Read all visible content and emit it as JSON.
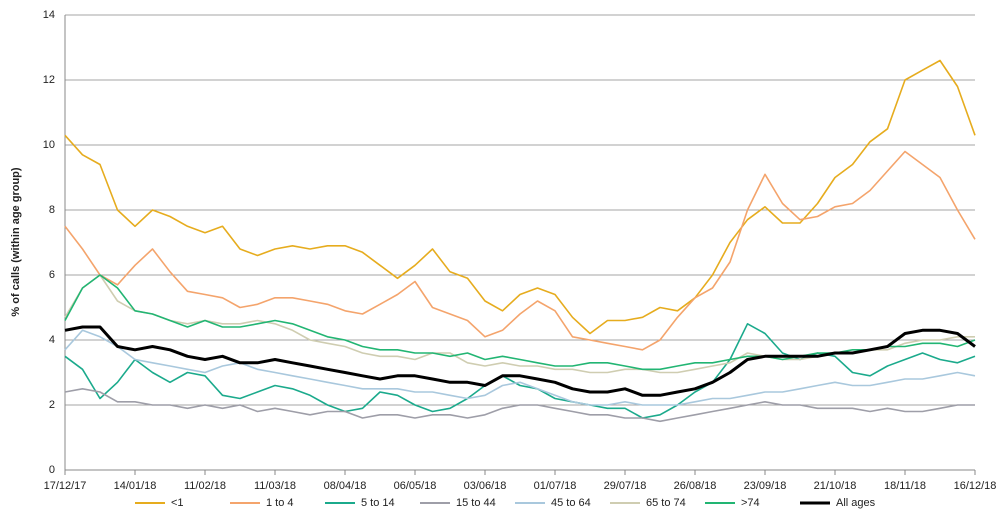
{
  "chart_data": {
    "type": "line",
    "y_label": "% of calls (within age group)",
    "x": [
      "17/12/17",
      "24/12/17",
      "31/12/17",
      "07/01/18",
      "14/01/18",
      "21/01/18",
      "28/01/18",
      "04/02/18",
      "11/02/18",
      "18/02/18",
      "25/02/18",
      "04/03/18",
      "11/03/18",
      "18/03/18",
      "25/03/18",
      "01/04/18",
      "08/04/18",
      "15/04/18",
      "22/04/18",
      "29/04/18",
      "06/05/18",
      "13/05/18",
      "20/05/18",
      "27/05/18",
      "03/06/18",
      "10/06/18",
      "17/06/18",
      "24/06/18",
      "01/07/18",
      "08/07/18",
      "15/07/18",
      "22/07/18",
      "29/07/18",
      "05/08/18",
      "12/08/18",
      "19/08/18",
      "26/08/18",
      "02/09/18",
      "09/09/18",
      "16/09/18",
      "23/09/18",
      "30/09/18",
      "07/10/18",
      "14/10/18",
      "21/10/18",
      "28/10/18",
      "04/11/18",
      "11/11/18",
      "18/11/18",
      "25/11/18",
      "02/12/18",
      "09/12/18",
      "16/12/18"
    ],
    "xticks": [
      "17/12/17",
      "14/01/18",
      "11/02/18",
      "11/03/18",
      "08/04/18",
      "06/05/18",
      "03/06/18",
      "01/07/18",
      "29/07/18",
      "26/08/18",
      "23/09/18",
      "21/10/18",
      "18/11/18",
      "16/12/18"
    ],
    "ylim": [
      0,
      14
    ],
    "yticks": [
      0,
      2,
      4,
      6,
      8,
      10,
      12,
      14
    ],
    "grid": true,
    "legend": "bottom",
    "series": [
      {
        "name": "<1",
        "color": "#e6ac1e",
        "values": [
          10.3,
          9.7,
          9.4,
          8.0,
          7.5,
          8.0,
          7.8,
          7.5,
          7.3,
          7.5,
          6.8,
          6.6,
          6.8,
          6.9,
          6.8,
          6.9,
          6.9,
          6.7,
          6.3,
          5.9,
          6.3,
          6.8,
          6.1,
          5.9,
          5.2,
          4.9,
          5.4,
          5.6,
          5.4,
          4.7,
          4.2,
          4.6,
          4.6,
          4.7,
          5.0,
          4.9,
          5.3,
          6.0,
          7.0,
          7.7,
          8.1,
          7.6,
          7.6,
          8.2,
          9.0,
          9.4,
          10.1,
          10.5,
          12.0,
          12.3,
          12.6,
          11.8,
          10.3
        ]
      },
      {
        "name": "1 to 4",
        "color": "#f4a46c",
        "values": [
          7.5,
          6.8,
          6.0,
          5.7,
          6.3,
          6.8,
          6.1,
          5.5,
          5.4,
          5.3,
          5.0,
          5.1,
          5.3,
          5.3,
          5.2,
          5.1,
          4.9,
          4.8,
          5.1,
          5.4,
          5.8,
          5.0,
          4.8,
          4.6,
          4.1,
          4.3,
          4.8,
          5.2,
          4.9,
          4.1,
          4.0,
          3.9,
          3.8,
          3.7,
          4.0,
          4.7,
          5.3,
          5.6,
          6.4,
          8.0,
          9.1,
          8.2,
          7.7,
          7.8,
          8.1,
          8.2,
          8.6,
          9.2,
          9.8,
          9.4,
          9.0,
          8.0,
          7.1
        ]
      },
      {
        "name": "5 to 14",
        "color": "#1baa8c",
        "values": [
          3.5,
          3.1,
          2.2,
          2.7,
          3.4,
          3.0,
          2.7,
          3.0,
          2.9,
          2.3,
          2.2,
          2.4,
          2.6,
          2.5,
          2.3,
          2.0,
          1.8,
          1.9,
          2.4,
          2.3,
          2.0,
          1.8,
          1.9,
          2.2,
          2.6,
          2.9,
          2.6,
          2.5,
          2.2,
          2.1,
          2.0,
          1.9,
          1.9,
          1.6,
          1.7,
          2.0,
          2.4,
          2.7,
          3.4,
          4.5,
          4.2,
          3.6,
          3.4,
          3.6,
          3.5,
          3.0,
          2.9,
          3.2,
          3.4,
          3.6,
          3.4,
          3.3,
          3.5
        ]
      },
      {
        "name": "15 to 44",
        "color": "#9e9ea8",
        "values": [
          2.4,
          2.5,
          2.4,
          2.1,
          2.1,
          2.0,
          2.0,
          1.9,
          2.0,
          1.9,
          2.0,
          1.8,
          1.9,
          1.8,
          1.7,
          1.8,
          1.8,
          1.6,
          1.7,
          1.7,
          1.6,
          1.7,
          1.7,
          1.6,
          1.7,
          1.9,
          2.0,
          2.0,
          1.9,
          1.8,
          1.7,
          1.7,
          1.6,
          1.6,
          1.5,
          1.6,
          1.7,
          1.8,
          1.9,
          2.0,
          2.1,
          2.0,
          2.0,
          1.9,
          1.9,
          1.9,
          1.8,
          1.9,
          1.8,
          1.8,
          1.9,
          2.0,
          2.0
        ]
      },
      {
        "name": "45 to 64",
        "color": "#a9c8dd",
        "values": [
          3.7,
          4.3,
          4.1,
          3.8,
          3.4,
          3.3,
          3.2,
          3.1,
          3.0,
          3.2,
          3.3,
          3.1,
          3.0,
          2.9,
          2.8,
          2.7,
          2.6,
          2.5,
          2.5,
          2.5,
          2.4,
          2.4,
          2.3,
          2.2,
          2.3,
          2.6,
          2.7,
          2.5,
          2.3,
          2.1,
          2.0,
          2.0,
          2.1,
          2.0,
          2.0,
          2.0,
          2.1,
          2.2,
          2.2,
          2.3,
          2.4,
          2.4,
          2.5,
          2.6,
          2.7,
          2.6,
          2.6,
          2.7,
          2.8,
          2.8,
          2.9,
          3.0,
          2.9
        ]
      },
      {
        "name": "65 to 74",
        "color": "#cfcdb1",
        "values": [
          4.7,
          5.6,
          6.0,
          5.2,
          4.9,
          4.8,
          4.6,
          4.5,
          4.6,
          4.5,
          4.5,
          4.6,
          4.5,
          4.3,
          4.0,
          3.9,
          3.8,
          3.6,
          3.5,
          3.5,
          3.4,
          3.6,
          3.6,
          3.3,
          3.2,
          3.3,
          3.2,
          3.2,
          3.1,
          3.1,
          3.0,
          3.0,
          3.1,
          3.1,
          3.0,
          3.0,
          3.1,
          3.2,
          3.3,
          3.6,
          3.5,
          3.4,
          3.4,
          3.5,
          3.6,
          3.6,
          3.7,
          3.7,
          3.9,
          4.0,
          4.0,
          4.1,
          4.1
        ]
      },
      {
        "name": ">74",
        "color": "#22b573",
        "values": [
          4.6,
          5.6,
          6.0,
          5.6,
          4.9,
          4.8,
          4.6,
          4.4,
          4.6,
          4.4,
          4.4,
          4.5,
          4.6,
          4.5,
          4.3,
          4.1,
          4.0,
          3.8,
          3.7,
          3.7,
          3.6,
          3.6,
          3.5,
          3.6,
          3.4,
          3.5,
          3.4,
          3.3,
          3.2,
          3.2,
          3.3,
          3.3,
          3.2,
          3.1,
          3.1,
          3.2,
          3.3,
          3.3,
          3.4,
          3.5,
          3.5,
          3.4,
          3.5,
          3.6,
          3.6,
          3.7,
          3.7,
          3.8,
          3.8,
          3.9,
          3.9,
          3.8,
          4.0
        ]
      },
      {
        "name": "All ages",
        "color": "#000000",
        "values": [
          4.3,
          4.4,
          4.4,
          3.8,
          3.7,
          3.8,
          3.7,
          3.5,
          3.4,
          3.5,
          3.3,
          3.3,
          3.4,
          3.3,
          3.2,
          3.1,
          3.0,
          2.9,
          2.8,
          2.9,
          2.9,
          2.8,
          2.7,
          2.7,
          2.6,
          2.9,
          2.9,
          2.8,
          2.7,
          2.5,
          2.4,
          2.4,
          2.5,
          2.3,
          2.3,
          2.4,
          2.5,
          2.7,
          3.0,
          3.4,
          3.5,
          3.5,
          3.5,
          3.5,
          3.6,
          3.6,
          3.7,
          3.8,
          4.2,
          4.3,
          4.3,
          4.2,
          3.8
        ]
      }
    ]
  }
}
